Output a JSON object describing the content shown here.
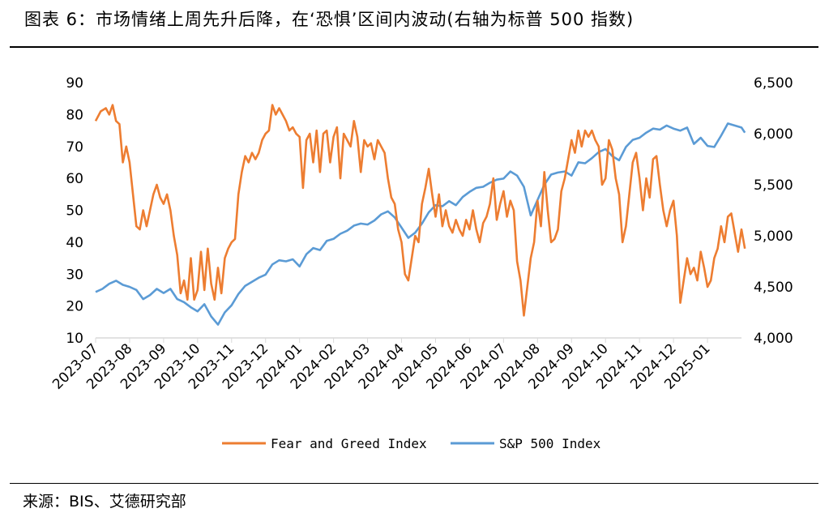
{
  "header": {
    "title": "图表 6：市场情绪上周先升后降，在‘恐惧’区间内波动(右轴为标普 500 指数)"
  },
  "footer": {
    "source": "来源：BIS、艾德研究部"
  },
  "colors": {
    "fear_greed": "#ED7D31",
    "sp500": "#5B9BD5",
    "axis": "#D9D9D9"
  },
  "chart_data": {
    "type": "line",
    "title": "市场情绪上周先升后降，在‘恐惧’区间内波动(右轴为标普 500 指数)",
    "x_categories": [
      "2023-07",
      "2023-08",
      "2023-09",
      "2023-10",
      "2023-11",
      "2023-12",
      "2024-01",
      "2024-02",
      "2024-03",
      "2024-04",
      "2024-05",
      "2024-06",
      "2024-07",
      "2024-08",
      "2024-09",
      "2024-10",
      "2024-11",
      "2024-12",
      "2025-01"
    ],
    "x_range": [
      0,
      19
    ],
    "y_left": {
      "min": 10,
      "max": 90,
      "ticks": [
        10,
        20,
        30,
        40,
        50,
        60,
        70,
        80,
        90
      ],
      "labels": [
        "10",
        "20",
        "30",
        "40",
        "50",
        "60",
        "70",
        "80",
        "90"
      ]
    },
    "y_right": {
      "min": 4000,
      "max": 6500,
      "ticks": [
        4000,
        4500,
        5000,
        5500,
        6000,
        6500
      ],
      "labels": [
        "4,000",
        "4,500",
        "5,000",
        "5,500",
        "6,000",
        "6,500"
      ]
    },
    "series": [
      {
        "name": "Fear and Greed Index",
        "axis": "left",
        "points": [
          [
            0,
            78
          ],
          [
            0.15,
            81
          ],
          [
            0.3,
            82
          ],
          [
            0.4,
            80
          ],
          [
            0.5,
            83
          ],
          [
            0.6,
            78
          ],
          [
            0.7,
            77
          ],
          [
            0.8,
            65
          ],
          [
            0.9,
            70
          ],
          [
            1.0,
            65
          ],
          [
            1.1,
            55
          ],
          [
            1.2,
            45
          ],
          [
            1.3,
            44
          ],
          [
            1.4,
            50
          ],
          [
            1.5,
            45
          ],
          [
            1.6,
            50
          ],
          [
            1.7,
            55
          ],
          [
            1.8,
            58
          ],
          [
            1.9,
            54
          ],
          [
            2.0,
            52
          ],
          [
            2.1,
            55
          ],
          [
            2.2,
            50
          ],
          [
            2.3,
            42
          ],
          [
            2.4,
            36
          ],
          [
            2.5,
            24
          ],
          [
            2.6,
            28
          ],
          [
            2.7,
            22
          ],
          [
            2.8,
            35
          ],
          [
            2.9,
            22
          ],
          [
            3.0,
            25
          ],
          [
            3.1,
            37
          ],
          [
            3.2,
            25
          ],
          [
            3.3,
            38
          ],
          [
            3.4,
            27
          ],
          [
            3.5,
            22
          ],
          [
            3.6,
            32
          ],
          [
            3.7,
            24
          ],
          [
            3.8,
            35
          ],
          [
            3.9,
            38
          ],
          [
            4.0,
            40
          ],
          [
            4.1,
            41
          ],
          [
            4.2,
            55
          ],
          [
            4.3,
            62
          ],
          [
            4.4,
            67
          ],
          [
            4.5,
            65
          ],
          [
            4.6,
            68
          ],
          [
            4.7,
            66
          ],
          [
            4.8,
            68
          ],
          [
            4.9,
            72
          ],
          [
            5.0,
            74
          ],
          [
            5.1,
            75
          ],
          [
            5.2,
            83
          ],
          [
            5.3,
            80
          ],
          [
            5.4,
            82
          ],
          [
            5.5,
            80
          ],
          [
            5.6,
            78
          ],
          [
            5.7,
            75
          ],
          [
            5.8,
            76
          ],
          [
            5.9,
            74
          ],
          [
            6.0,
            73
          ],
          [
            6.1,
            57
          ],
          [
            6.2,
            72
          ],
          [
            6.3,
            74
          ],
          [
            6.4,
            65
          ],
          [
            6.5,
            75
          ],
          [
            6.6,
            62
          ],
          [
            6.7,
            74
          ],
          [
            6.8,
            75
          ],
          [
            6.9,
            65
          ],
          [
            7.0,
            73
          ],
          [
            7.1,
            76
          ],
          [
            7.2,
            60
          ],
          [
            7.3,
            74
          ],
          [
            7.4,
            72
          ],
          [
            7.5,
            70
          ],
          [
            7.6,
            78
          ],
          [
            7.7,
            73
          ],
          [
            7.8,
            62
          ],
          [
            7.9,
            72
          ],
          [
            8.0,
            70
          ],
          [
            8.1,
            71
          ],
          [
            8.2,
            66
          ],
          [
            8.3,
            72
          ],
          [
            8.4,
            70
          ],
          [
            8.5,
            68
          ],
          [
            8.6,
            60
          ],
          [
            8.7,
            54
          ],
          [
            8.8,
            52
          ],
          [
            8.9,
            44
          ],
          [
            9.0,
            40
          ],
          [
            9.1,
            30
          ],
          [
            9.2,
            28
          ],
          [
            9.3,
            35
          ],
          [
            9.4,
            42
          ],
          [
            9.5,
            40
          ],
          [
            9.6,
            52
          ],
          [
            9.7,
            57
          ],
          [
            9.8,
            63
          ],
          [
            9.9,
            55
          ],
          [
            10.0,
            48
          ],
          [
            10.1,
            55
          ],
          [
            10.2,
            45
          ],
          [
            10.3,
            50
          ],
          [
            10.4,
            45
          ],
          [
            10.5,
            43
          ],
          [
            10.6,
            47
          ],
          [
            10.7,
            44
          ],
          [
            10.8,
            42
          ],
          [
            10.9,
            47
          ],
          [
            11.0,
            44
          ],
          [
            11.1,
            50
          ],
          [
            11.2,
            44
          ],
          [
            11.3,
            40
          ],
          [
            11.4,
            46
          ],
          [
            11.5,
            48
          ],
          [
            11.6,
            52
          ],
          [
            11.7,
            60
          ],
          [
            11.8,
            47
          ],
          [
            11.9,
            52
          ],
          [
            12.0,
            56
          ],
          [
            12.1,
            48
          ],
          [
            12.2,
            53
          ],
          [
            12.3,
            50
          ],
          [
            12.4,
            34
          ],
          [
            12.5,
            28
          ],
          [
            12.6,
            17
          ],
          [
            12.7,
            26
          ],
          [
            12.8,
            35
          ],
          [
            12.9,
            40
          ],
          [
            13.0,
            53
          ],
          [
            13.1,
            45
          ],
          [
            13.2,
            62
          ],
          [
            13.3,
            50
          ],
          [
            13.4,
            40
          ],
          [
            13.5,
            41
          ],
          [
            13.6,
            44
          ],
          [
            13.7,
            56
          ],
          [
            13.8,
            60
          ],
          [
            13.9,
            66
          ],
          [
            14.0,
            72
          ],
          [
            14.1,
            68
          ],
          [
            14.2,
            75
          ],
          [
            14.3,
            70
          ],
          [
            14.4,
            75
          ],
          [
            14.5,
            73
          ],
          [
            14.6,
            75
          ],
          [
            14.7,
            72
          ],
          [
            14.8,
            70
          ],
          [
            14.9,
            58
          ],
          [
            15.0,
            60
          ],
          [
            15.1,
            72
          ],
          [
            15.2,
            69
          ],
          [
            15.3,
            60
          ],
          [
            15.4,
            55
          ],
          [
            15.5,
            40
          ],
          [
            15.6,
            45
          ],
          [
            15.7,
            55
          ],
          [
            15.8,
            65
          ],
          [
            15.9,
            68
          ],
          [
            16.0,
            60
          ],
          [
            16.1,
            50
          ],
          [
            16.2,
            60
          ],
          [
            16.3,
            54
          ],
          [
            16.4,
            66
          ],
          [
            16.5,
            67
          ],
          [
            16.6,
            58
          ],
          [
            16.7,
            50
          ],
          [
            16.8,
            45
          ],
          [
            16.9,
            50
          ],
          [
            17.0,
            53
          ],
          [
            17.1,
            42
          ],
          [
            17.2,
            21
          ],
          [
            17.3,
            28
          ],
          [
            17.4,
            35
          ],
          [
            17.5,
            30
          ],
          [
            17.6,
            32
          ],
          [
            17.7,
            28
          ],
          [
            17.8,
            37
          ],
          [
            17.9,
            32
          ],
          [
            18.0,
            26
          ],
          [
            18.1,
            28
          ],
          [
            18.2,
            35
          ],
          [
            18.3,
            38
          ],
          [
            18.4,
            45
          ],
          [
            18.5,
            40
          ],
          [
            18.6,
            48
          ],
          [
            18.7,
            49
          ],
          [
            18.8,
            43
          ],
          [
            18.9,
            37
          ],
          [
            19.0,
            44
          ],
          [
            19.1,
            38
          ]
        ]
      },
      {
        "name": "S&P 500 Index",
        "axis": "right",
        "points": [
          [
            0,
            4450
          ],
          [
            0.2,
            4480
          ],
          [
            0.4,
            4530
          ],
          [
            0.6,
            4560
          ],
          [
            0.8,
            4520
          ],
          [
            1.0,
            4500
          ],
          [
            1.2,
            4470
          ],
          [
            1.4,
            4380
          ],
          [
            1.6,
            4420
          ],
          [
            1.8,
            4480
          ],
          [
            2.0,
            4440
          ],
          [
            2.2,
            4480
          ],
          [
            2.4,
            4380
          ],
          [
            2.6,
            4350
          ],
          [
            2.8,
            4300
          ],
          [
            3.0,
            4260
          ],
          [
            3.2,
            4330
          ],
          [
            3.4,
            4210
          ],
          [
            3.6,
            4130
          ],
          [
            3.8,
            4250
          ],
          [
            4.0,
            4320
          ],
          [
            4.2,
            4430
          ],
          [
            4.4,
            4510
          ],
          [
            4.6,
            4550
          ],
          [
            4.8,
            4590
          ],
          [
            5.0,
            4620
          ],
          [
            5.2,
            4720
          ],
          [
            5.4,
            4760
          ],
          [
            5.6,
            4750
          ],
          [
            5.8,
            4770
          ],
          [
            6.0,
            4700
          ],
          [
            6.2,
            4820
          ],
          [
            6.4,
            4880
          ],
          [
            6.6,
            4860
          ],
          [
            6.8,
            4950
          ],
          [
            7.0,
            4970
          ],
          [
            7.2,
            5020
          ],
          [
            7.4,
            5050
          ],
          [
            7.6,
            5100
          ],
          [
            7.8,
            5120
          ],
          [
            8.0,
            5110
          ],
          [
            8.2,
            5150
          ],
          [
            8.4,
            5210
          ],
          [
            8.6,
            5240
          ],
          [
            8.8,
            5180
          ],
          [
            9.0,
            5080
          ],
          [
            9.2,
            4980
          ],
          [
            9.4,
            5030
          ],
          [
            9.6,
            5120
          ],
          [
            9.8,
            5230
          ],
          [
            10.0,
            5300
          ],
          [
            10.2,
            5290
          ],
          [
            10.4,
            5340
          ],
          [
            10.6,
            5300
          ],
          [
            10.8,
            5380
          ],
          [
            11.0,
            5430
          ],
          [
            11.2,
            5470
          ],
          [
            11.4,
            5480
          ],
          [
            11.6,
            5520
          ],
          [
            11.8,
            5550
          ],
          [
            12.0,
            5560
          ],
          [
            12.2,
            5630
          ],
          [
            12.4,
            5590
          ],
          [
            12.6,
            5480
          ],
          [
            12.8,
            5200
          ],
          [
            13.0,
            5350
          ],
          [
            13.2,
            5500
          ],
          [
            13.4,
            5600
          ],
          [
            13.6,
            5620
          ],
          [
            13.8,
            5630
          ],
          [
            14.0,
            5590
          ],
          [
            14.2,
            5720
          ],
          [
            14.4,
            5710
          ],
          [
            14.6,
            5760
          ],
          [
            14.8,
            5820
          ],
          [
            15.0,
            5850
          ],
          [
            15.2,
            5780
          ],
          [
            15.4,
            5740
          ],
          [
            15.6,
            5870
          ],
          [
            15.8,
            5940
          ],
          [
            16.0,
            5960
          ],
          [
            16.2,
            6010
          ],
          [
            16.4,
            6050
          ],
          [
            16.6,
            6040
          ],
          [
            16.8,
            6080
          ],
          [
            17.0,
            6050
          ],
          [
            17.2,
            6030
          ],
          [
            17.4,
            6060
          ],
          [
            17.6,
            5900
          ],
          [
            17.8,
            5960
          ],
          [
            18.0,
            5880
          ],
          [
            18.2,
            5870
          ],
          [
            18.4,
            5980
          ],
          [
            18.6,
            6100
          ],
          [
            18.8,
            6080
          ],
          [
            19.0,
            6060
          ],
          [
            19.1,
            6010
          ]
        ]
      }
    ],
    "legend": [
      "Fear and Greed Index",
      "S&P 500 Index"
    ],
    "legend_position": "bottom"
  }
}
